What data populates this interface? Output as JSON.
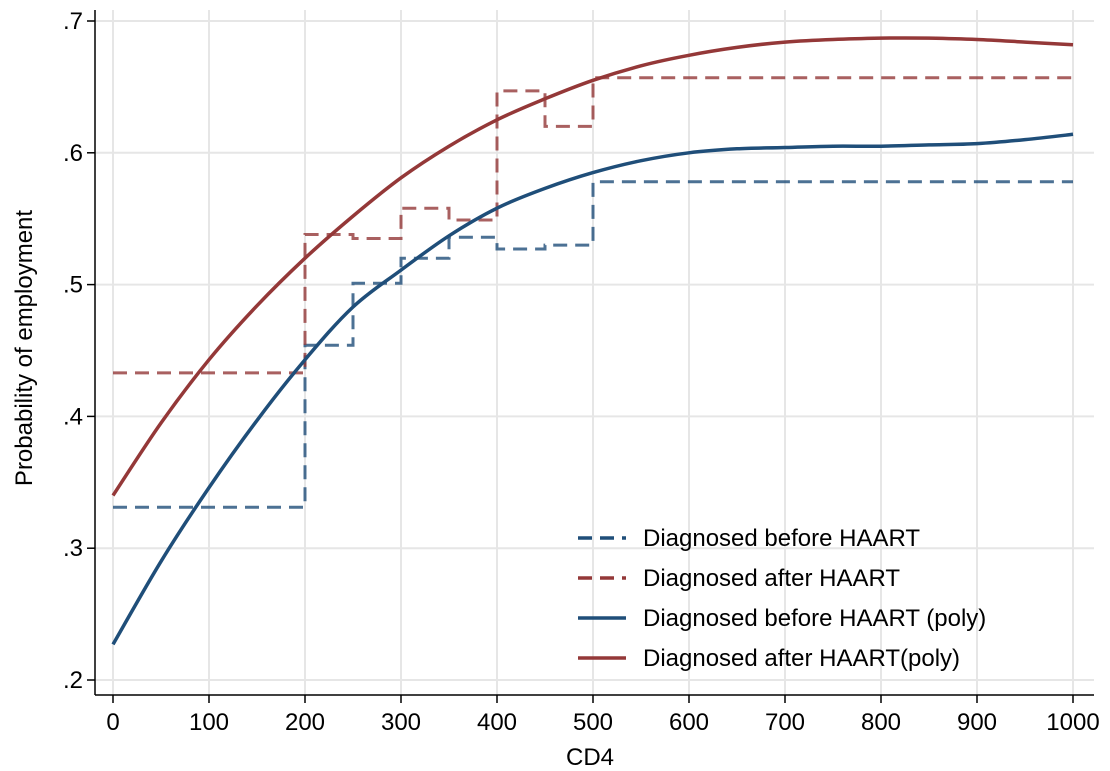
{
  "chart_data": {
    "type": "line",
    "title": "",
    "xlabel": "CD4",
    "ylabel": "Probability of employment",
    "xlim": [
      0,
      1000
    ],
    "ylim": [
      0.2,
      0.7
    ],
    "x_ticks": [
      0,
      100,
      200,
      300,
      400,
      500,
      600,
      700,
      800,
      900,
      1000
    ],
    "x_tick_labels": [
      "0",
      "100",
      "200",
      "300",
      "400",
      "500",
      "600",
      "700",
      "800",
      "900",
      "1000"
    ],
    "y_ticks": [
      0.2,
      0.3,
      0.4,
      0.5,
      0.6,
      0.7
    ],
    "y_tick_labels": [
      ".2",
      ".3",
      ".4",
      ".5",
      ".6",
      ".7"
    ],
    "grid": true,
    "legend_position": "bottom-right",
    "series": [
      {
        "name": "Diagnosed before HAART",
        "style": "dashed-step",
        "color": "#1f4e79",
        "x": [
          0,
          200,
          200,
          250,
          250,
          300,
          300,
          350,
          350,
          400,
          400,
          450,
          450,
          500,
          500,
          1000
        ],
        "values": [
          0.331,
          0.331,
          0.454,
          0.454,
          0.501,
          0.501,
          0.52,
          0.52,
          0.536,
          0.536,
          0.527,
          0.527,
          0.53,
          0.53,
          0.578,
          0.578
        ]
      },
      {
        "name": "Diagnosed after HAART",
        "style": "dashed-step",
        "color": "#943838",
        "x": [
          0,
          200,
          200,
          250,
          250,
          300,
          300,
          350,
          350,
          400,
          400,
          450,
          450,
          500,
          500,
          1000
        ],
        "values": [
          0.433,
          0.433,
          0.538,
          0.538,
          0.535,
          0.535,
          0.558,
          0.558,
          0.549,
          0.549,
          0.647,
          0.647,
          0.62,
          0.62,
          0.657,
          0.657
        ]
      },
      {
        "name": "Diagnosed before HAART (poly)",
        "style": "solid",
        "color": "#1f4e79",
        "x": [
          0,
          50,
          100,
          150,
          200,
          250,
          300,
          350,
          400,
          450,
          500,
          550,
          600,
          650,
          700,
          750,
          800,
          850,
          900,
          950,
          1000
        ],
        "values": [
          0.227,
          0.29,
          0.346,
          0.397,
          0.443,
          0.483,
          0.511,
          0.537,
          0.558,
          0.573,
          0.585,
          0.594,
          0.6,
          0.603,
          0.604,
          0.605,
          0.605,
          0.606,
          0.607,
          0.61,
          0.614
        ]
      },
      {
        "name": "Diagnosed after HAART(poly)",
        "style": "solid",
        "color": "#943838",
        "x": [
          0,
          50,
          100,
          150,
          200,
          250,
          300,
          350,
          400,
          450,
          500,
          550,
          600,
          650,
          700,
          750,
          800,
          850,
          900,
          950,
          1000
        ],
        "values": [
          0.34,
          0.395,
          0.443,
          0.484,
          0.52,
          0.552,
          0.581,
          0.605,
          0.625,
          0.641,
          0.655,
          0.666,
          0.674,
          0.68,
          0.684,
          0.686,
          0.687,
          0.687,
          0.686,
          0.684,
          0.682
        ]
      }
    ]
  }
}
